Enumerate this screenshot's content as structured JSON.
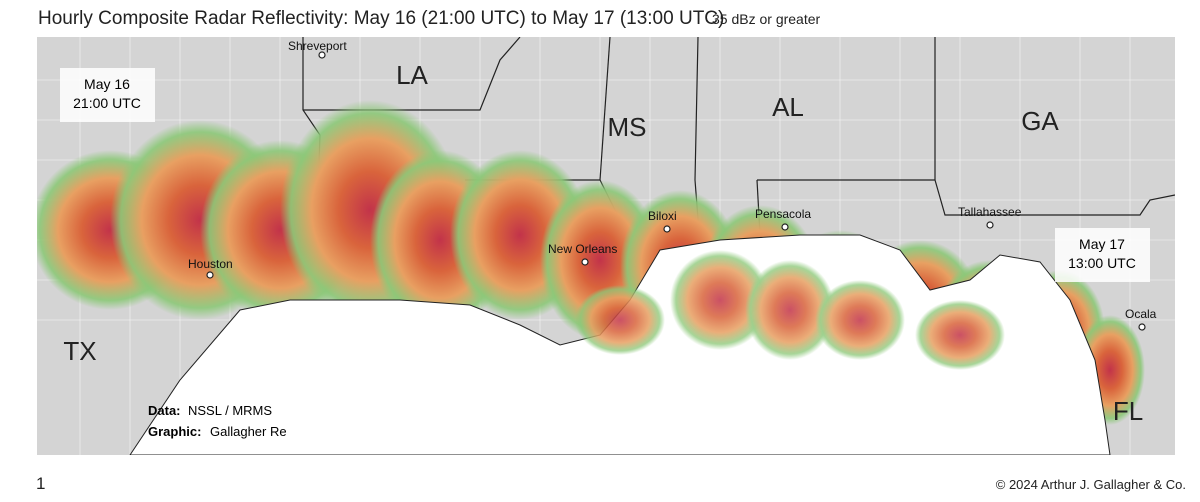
{
  "header": {
    "title": "Hourly Composite Radar Reflectivity: May 16 (21:00 UTC) to May 17 (13:00 UTC)",
    "subtitle": "35 dBz or greater"
  },
  "map": {
    "states": [
      "LA",
      "MS",
      "AL",
      "GA",
      "TX",
      "FL"
    ],
    "cities": [
      "Shreveport",
      "Houston",
      "New Orleans",
      "Biloxi",
      "Pensacola",
      "Tallahassee",
      "Ocala"
    ],
    "start_time": {
      "date": "May 16",
      "time": "21:00 UTC"
    },
    "end_time": {
      "date": "May 17",
      "time": "13:00 UTC"
    },
    "credits": {
      "data_label": "Data:",
      "data_value": "NSSL / MRMS",
      "graphic_label": "Graphic:",
      "graphic_value": "Gallagher Re"
    }
  },
  "footer": {
    "page": "1",
    "copyright": "© 2024 Arthur J. Gallagher & Co."
  }
}
